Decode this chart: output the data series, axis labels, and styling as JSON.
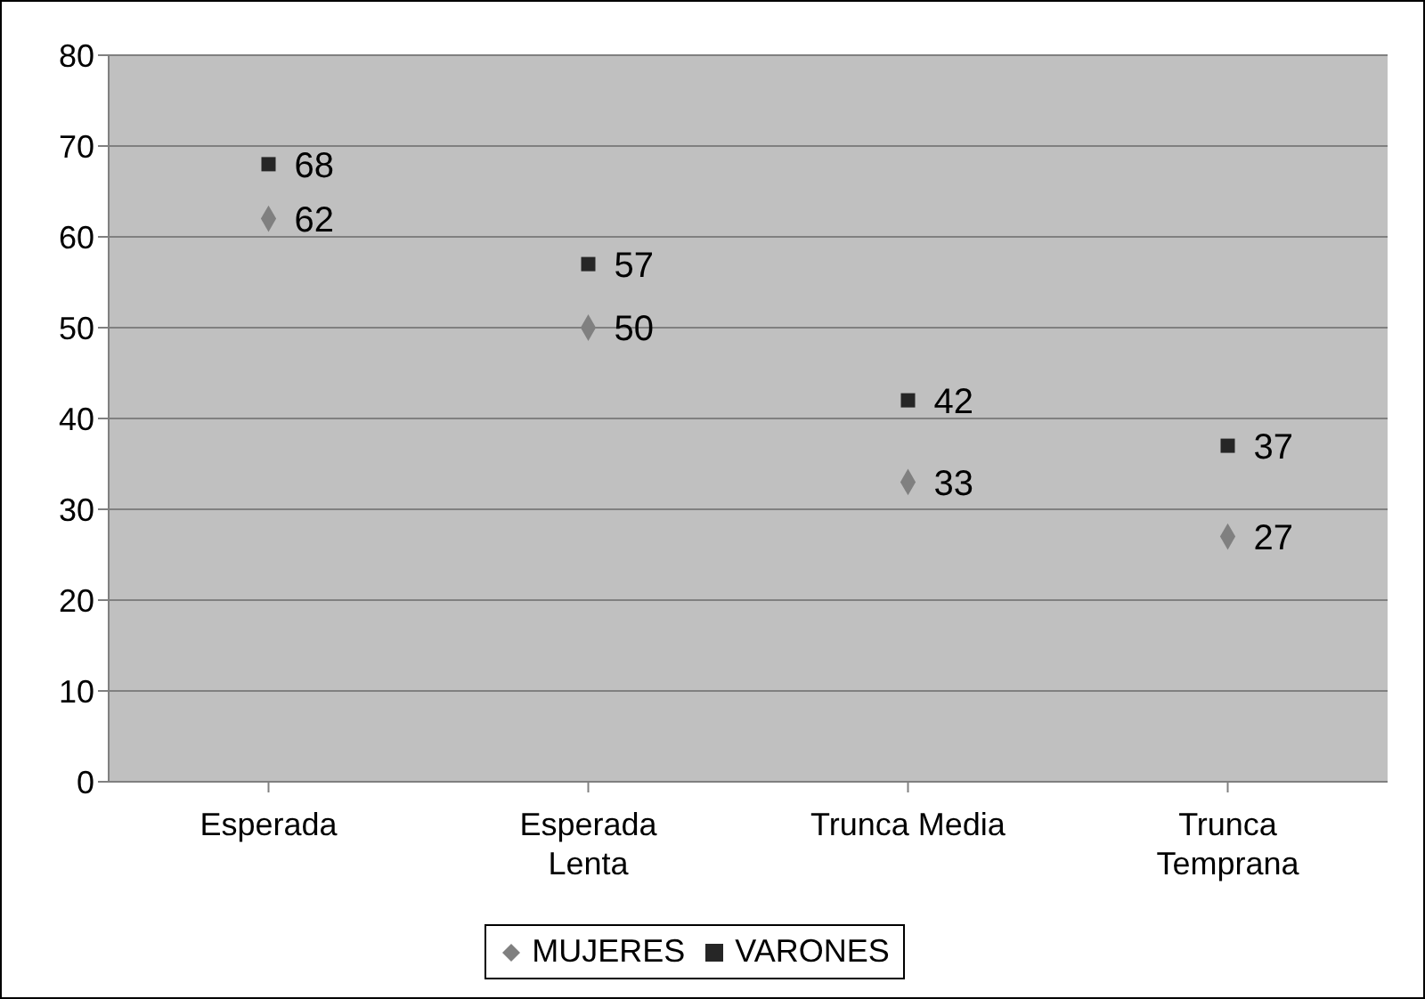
{
  "chart_data": {
    "type": "scatter",
    "categories": [
      "Esperada",
      "Esperada Lenta",
      "Trunca Media",
      "Trunca Temprana"
    ],
    "series": [
      {
        "name": "MUJERES",
        "color": "#808080",
        "marker": "diamond",
        "values": [
          62,
          50,
          33,
          27
        ]
      },
      {
        "name": "VARONES",
        "color": "#262626",
        "marker": "square",
        "values": [
          68,
          57,
          42,
          37
        ]
      }
    ],
    "ylim": [
      0,
      80
    ],
    "yticks": [
      0,
      10,
      20,
      30,
      40,
      50,
      60,
      70,
      80
    ],
    "grid": "y",
    "legend": "bottom",
    "data_labels": true
  }
}
